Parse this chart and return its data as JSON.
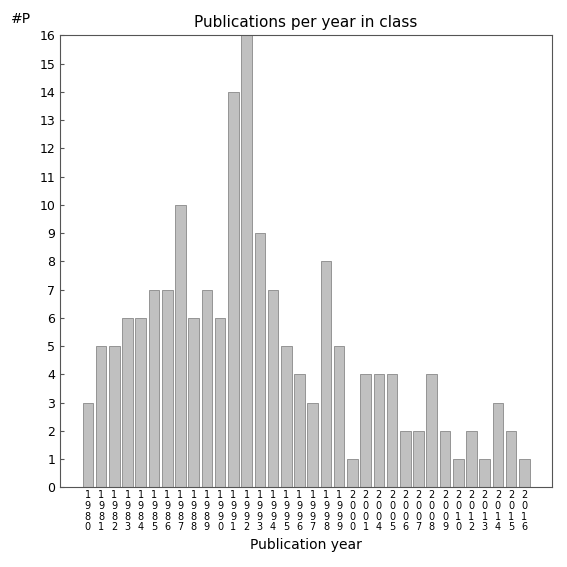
{
  "x_labels": [
    "1\n9\n8\n0",
    "1\n9\n8\n1",
    "1\n9\n8\n2",
    "1\n9\n8\n3",
    "1\n9\n8\n4",
    "1\n9\n8\n5",
    "1\n9\n8\n6",
    "1\n9\n8\n7",
    "1\n9\n8\n8",
    "1\n9\n8\n9",
    "1\n9\n9\n0",
    "1\n9\n9\n1",
    "1\n9\n9\n2",
    "1\n9\n9\n3",
    "1\n9\n9\n4",
    "1\n9\n9\n5",
    "1\n9\n9\n6",
    "1\n9\n9\n7",
    "1\n9\n9\n8",
    "1\n9\n9\n9",
    "2\n0\n0\n0",
    "2\n0\n0\n1",
    "2\n0\n0\n4",
    "2\n0\n0\n5",
    "2\n0\n0\n6",
    "2\n0\n0\n7",
    "2\n0\n0\n8",
    "2\n0\n0\n9",
    "2\n0\n1\n0",
    "2\n0\n1\n2",
    "2\n0\n1\n3",
    "2\n0\n1\n4",
    "2\n0\n1\n5",
    "2\n0\n1\n6"
  ],
  "bar_heights": [
    3,
    5,
    5,
    6,
    6,
    7,
    7,
    10,
    6,
    7,
    6,
    14,
    16,
    9,
    7,
    5,
    4,
    3,
    8,
    5,
    1,
    4,
    4,
    4,
    2,
    2,
    4,
    2,
    1,
    2,
    1,
    3,
    2,
    1
  ],
  "title": "Publications per year in class",
  "xlabel": "Publication year",
  "ylabel": "#P",
  "bar_color": "#c0c0c0",
  "bar_edge_color": "#888888",
  "ylim_max": 16,
  "yticks": [
    0,
    1,
    2,
    3,
    4,
    5,
    6,
    7,
    8,
    9,
    10,
    11,
    12,
    13,
    14,
    15,
    16
  ],
  "figsize": [
    5.67,
    5.67
  ],
  "dpi": 100
}
